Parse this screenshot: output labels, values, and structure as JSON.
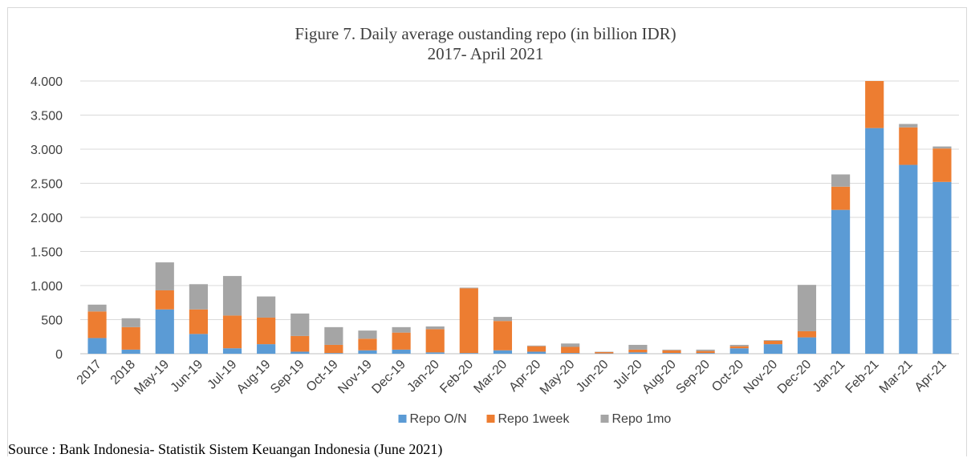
{
  "chart_data": {
    "type": "bar",
    "stacked": true,
    "title": "Figure 7. Daily average oustanding repo (in billion IDR)",
    "subtitle": "2017- April 2021",
    "xlabel": "",
    "ylabel": "",
    "ylim": [
      0,
      4000
    ],
    "yticks": [
      0,
      500,
      1000,
      1500,
      2000,
      2500,
      3000,
      3500,
      4000
    ],
    "ytick_labels": [
      "0",
      "500",
      "1.000",
      "1.500",
      "2.000",
      "2.500",
      "3.000",
      "3.500",
      "4.000"
    ],
    "grid": true,
    "legend_position": "bottom",
    "categories": [
      "2017",
      "2018",
      "May-19",
      "Jun-19",
      "Jul-19",
      "Aug-19",
      "Sep-19",
      "Oct-19",
      "Nov-19",
      "Dec-19",
      "Jan-20",
      "Feb-20",
      "Mar-20",
      "Apr-20",
      "May-20",
      "Jun-20",
      "Jul-20",
      "Aug-20",
      "Sep-20",
      "Oct-20",
      "Nov-20",
      "Dec-20",
      "Jan-21",
      "Feb-21",
      "Mar-21",
      "Apr-21"
    ],
    "series": [
      {
        "name": "Repo O/N",
        "color": "#5b9bd5",
        "values": [
          230,
          60,
          650,
          290,
          80,
          140,
          30,
          10,
          50,
          60,
          20,
          10,
          50,
          30,
          10,
          5,
          20,
          10,
          10,
          80,
          140,
          240,
          2110,
          3310,
          2770,
          2520
        ]
      },
      {
        "name": "Repo 1week",
        "color": "#ed7d31",
        "values": [
          390,
          330,
          280,
          360,
          480,
          390,
          230,
          120,
          170,
          250,
          340,
          950,
          430,
          80,
          90,
          20,
          40,
          40,
          30,
          30,
          50,
          90,
          340,
          690,
          550,
          490
        ]
      },
      {
        "name": "Repo 1mo",
        "color": "#a5a5a5",
        "values": [
          100,
          130,
          410,
          370,
          580,
          310,
          330,
          260,
          120,
          80,
          40,
          10,
          60,
          10,
          50,
          5,
          70,
          10,
          20,
          20,
          10,
          680,
          180,
          0,
          50,
          30
        ]
      }
    ]
  },
  "source": "Source : Bank Indonesia- Statistik Sistem Keuangan Indonesia (June 2021)"
}
